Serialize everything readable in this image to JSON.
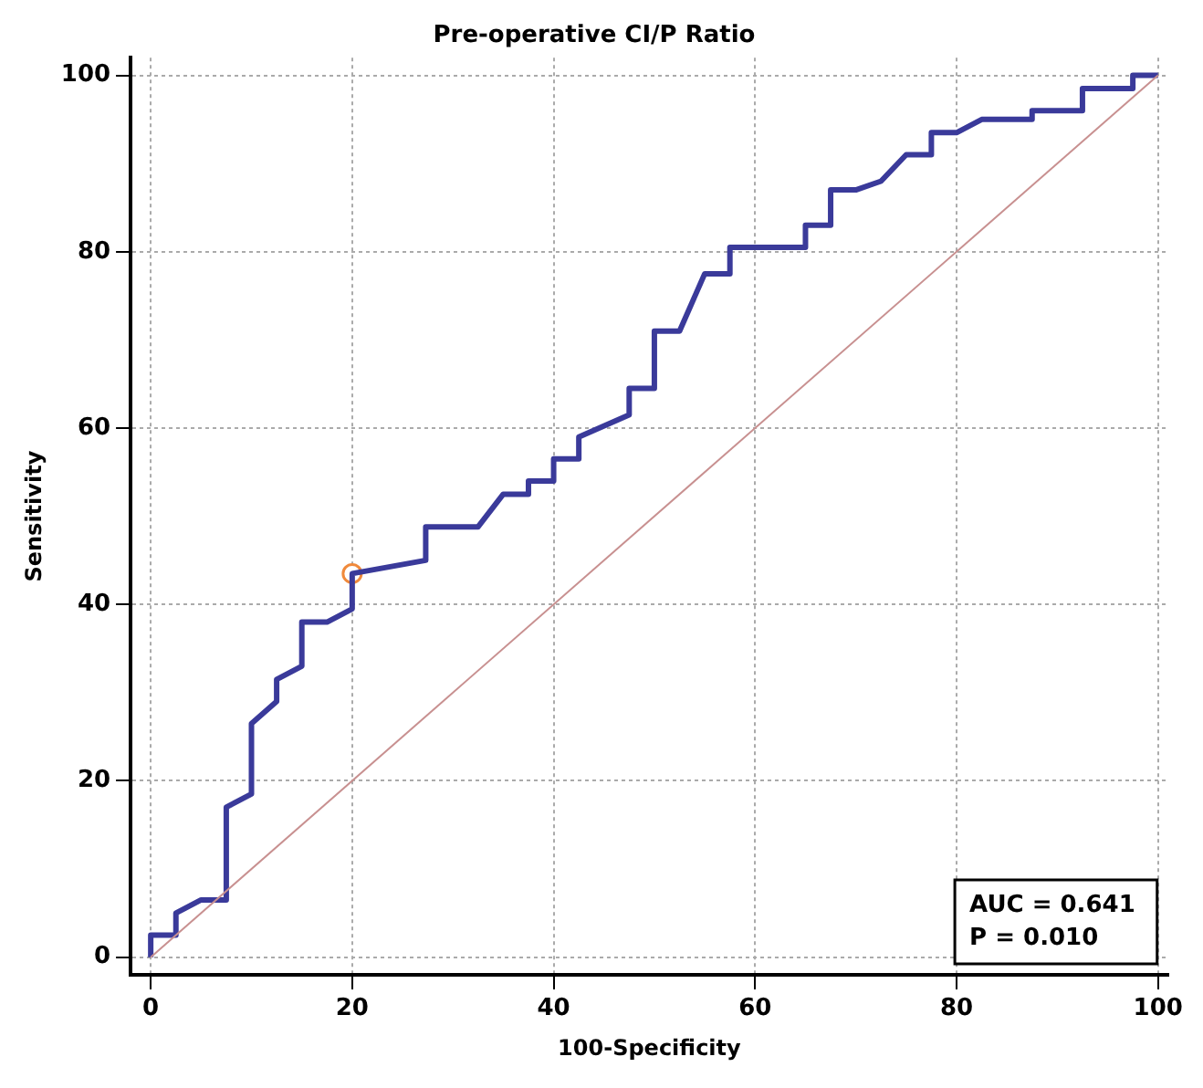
{
  "chart_data": {
    "type": "line",
    "title": "Pre-operative CI/P Ratio",
    "xlabel": "100-Specificity",
    "ylabel": "Sensitivity",
    "xlim": [
      -2,
      101
    ],
    "ylim": [
      -2,
      102
    ],
    "xticks": [
      0,
      20,
      40,
      60,
      80,
      100
    ],
    "yticks": [
      0,
      20,
      40,
      60,
      80,
      100
    ],
    "grid": true,
    "legend": false,
    "series": [
      {
        "color": "#c89090",
        "x": [
          0,
          100
        ],
        "values": [
          0,
          100
        ]
      },
      {
        "color": "#3a3a9a",
        "x": [
          0,
          0,
          2.5,
          2.5,
          5,
          7.5,
          7.5,
          10,
          10,
          12.5,
          12.5,
          15,
          15,
          17.5,
          20,
          20,
          27.3,
          27.3,
          32.5,
          35,
          37.5,
          37.5,
          40,
          40,
          42.5,
          42.5,
          47.5,
          47.5,
          50,
          50,
          52.5,
          55,
          57.5,
          57.5,
          65,
          65,
          67.5,
          67.5,
          70,
          72.5,
          75,
          77.5,
          77.5,
          80,
          82.5,
          87.5,
          87.5,
          92.5,
          92.5,
          97.5,
          97.5,
          100
        ],
        "values": [
          0,
          2.5,
          2.5,
          5,
          6.5,
          6.5,
          17,
          18.5,
          26.5,
          29,
          31.5,
          33,
          38,
          38,
          39.5,
          43.5,
          45,
          48.8,
          48.8,
          52.5,
          52.5,
          54,
          54,
          56.5,
          56.5,
          59,
          61.5,
          64.5,
          64.5,
          71,
          71,
          77.5,
          77.5,
          80.5,
          80.5,
          83,
          83,
          87,
          87,
          88,
          91,
          91,
          93.5,
          93.5,
          95,
          95,
          96,
          96,
          98.5,
          98.5,
          100,
          100
        ]
      },
      {
        "type": "scatter",
        "color": "#f08a3c",
        "marker": "circle",
        "x": [
          20
        ],
        "values": [
          43.5
        ]
      }
    ],
    "annotations": [
      "AUC = 0.641",
      "P = 0.010"
    ]
  }
}
